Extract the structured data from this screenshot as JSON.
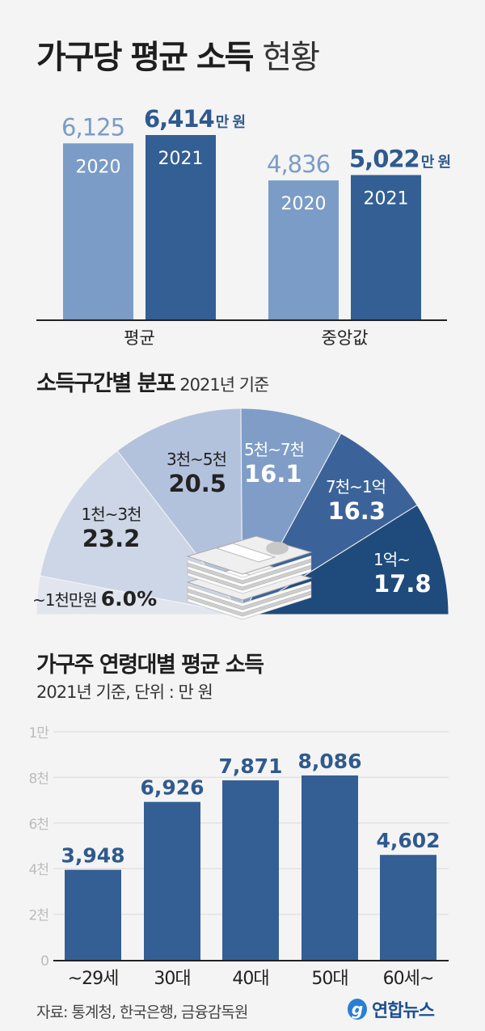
{
  "title": {
    "bold": "가구당 평균 소득",
    "light": "현황"
  },
  "colors": {
    "light_bar": "#7b9cc6",
    "dark_bar": "#335f94",
    "background": "#f4f4f4",
    "pie": [
      "#e1e5ee",
      "#cdd6e6",
      "#b3c2dc",
      "#7f9dc7",
      "#3c6399",
      "#1f4a7c"
    ]
  },
  "chart_data": [
    {
      "type": "bar",
      "title": "가구당 평균 소득 현황",
      "categories": [
        "평균",
        "중앙값"
      ],
      "series": [
        {
          "name": "2020",
          "values": [
            6125,
            4836
          ],
          "labels": [
            "6,125",
            "4,836"
          ]
        },
        {
          "name": "2021",
          "values": [
            6414,
            5022
          ],
          "labels": [
            "6,414",
            "5,022"
          ]
        }
      ],
      "unit": "만 원",
      "ylim": [
        0,
        6414
      ]
    },
    {
      "type": "pie",
      "title": "소득구간별 분포",
      "subtitle": "2021년 기준",
      "slices": [
        {
          "label": "~1천만원",
          "value": 6.0,
          "value_label": "6.0%"
        },
        {
          "label": "1천~3천",
          "value": 23.2,
          "value_label": "23.2"
        },
        {
          "label": "3천~5천",
          "value": 20.5,
          "value_label": "20.5"
        },
        {
          "label": "5천~7천",
          "value": 16.1,
          "value_label": "16.1"
        },
        {
          "label": "7천~1억",
          "value": 16.3,
          "value_label": "16.3"
        },
        {
          "label": "1억~",
          "value": 17.8,
          "value_label": "17.8"
        }
      ],
      "shape": "semicircle"
    },
    {
      "type": "bar",
      "title": "가구주 연령대별 평균 소득",
      "subtitle": "2021년 기준, 단위 : 만 원",
      "categories": [
        "~29세",
        "30대",
        "40대",
        "50대",
        "60세~"
      ],
      "values": [
        3948,
        6926,
        7871,
        8086,
        4602
      ],
      "value_labels": [
        "3,948",
        "6,926",
        "7,871",
        "8,086",
        "4,602"
      ],
      "yticks": [
        0,
        2000,
        4000,
        6000,
        8000,
        10000
      ],
      "ytick_labels": [
        "0",
        "2천",
        "4천",
        "6천",
        "8천",
        "1만"
      ],
      "ylim": [
        0,
        10000
      ],
      "grid": true
    }
  ],
  "footer": {
    "source": "자료: 통계청, 한국은행, 금융감독원",
    "logo": "연합뉴스"
  }
}
